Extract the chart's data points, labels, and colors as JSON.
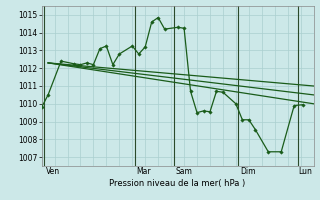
{
  "xlabel": "Pression niveau de la mer( hPa )",
  "bg_color": "#cce8e8",
  "grid_color": "#aacfcf",
  "line_color": "#1a5c1a",
  "ylim": [
    1006.5,
    1015.5
  ],
  "xlim": [
    0,
    21
  ],
  "day_labels": [
    "Ven",
    "Mar",
    "Sam",
    "Dim",
    "Lun"
  ],
  "day_x": [
    0.3,
    7.3,
    10.3,
    15.3,
    19.8
  ],
  "vline_positions": [
    0.2,
    7.2,
    10.2,
    15.2,
    19.8
  ],
  "yticks": [
    1007,
    1008,
    1009,
    1010,
    1011,
    1012,
    1013,
    1014,
    1015
  ],
  "series0_x": [
    0,
    0.5,
    1.5,
    2.5,
    3.0,
    3.5,
    4.0,
    4.5,
    5.0,
    5.5,
    6.0,
    7.0,
    7.5,
    8.0,
    8.5,
    9.0,
    9.5,
    10.5,
    11.0,
    11.5,
    12.0,
    12.5,
    13.0,
    13.5,
    14.0,
    15.0,
    15.5,
    16.0,
    16.5,
    17.5,
    18.5,
    19.5,
    20.2
  ],
  "series0_y": [
    1009.8,
    1010.5,
    1012.4,
    1012.25,
    1012.2,
    1012.3,
    1012.2,
    1013.1,
    1013.25,
    1012.2,
    1012.8,
    1013.25,
    1012.8,
    1013.2,
    1014.6,
    1014.85,
    1014.2,
    1014.3,
    1014.25,
    1010.7,
    1009.5,
    1009.6,
    1009.55,
    1010.7,
    1010.65,
    1010.0,
    1009.1,
    1009.1,
    1008.55,
    1007.3,
    1007.3,
    1009.9,
    1009.95
  ],
  "series1_x": [
    0.5,
    21
  ],
  "series1_y": [
    1012.3,
    1010.0
  ],
  "series2_x": [
    0.5,
    21
  ],
  "series2_y": [
    1012.3,
    1010.5
  ],
  "series3_x": [
    0.5,
    21
  ],
  "series3_y": [
    1012.3,
    1011.0
  ]
}
